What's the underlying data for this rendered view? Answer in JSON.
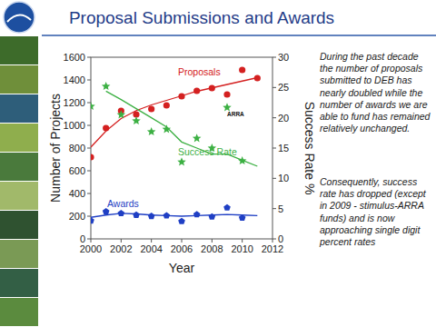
{
  "chart_data": {
    "type": "line",
    "title": "Proposal Submissions and Awards",
    "x_label": "Year",
    "y_label": "Number of Projects",
    "y2_label": "Success Rate %",
    "x": [
      2000,
      2001,
      2002,
      2003,
      2004,
      2005,
      2006,
      2007,
      2008,
      2009,
      2010,
      2011
    ],
    "xlim": [
      2000,
      2012
    ],
    "xticks": [
      2000,
      2002,
      2004,
      2006,
      2008,
      2010,
      2012
    ],
    "ylim": [
      0,
      1600
    ],
    "yticks": [
      0,
      200,
      400,
      600,
      800,
      1000,
      1200,
      1400,
      1600
    ],
    "y2lim": [
      0,
      30
    ],
    "y2ticks": [
      0,
      5,
      10,
      15,
      20,
      25,
      30
    ],
    "grid": false,
    "series": [
      {
        "name": "Proposals",
        "color": "#d42020",
        "marker": "circle",
        "values": [
          720,
          976,
          1128,
          1096,
          1144,
          1176,
          1256,
          1304,
          1328,
          1272,
          1488,
          1416
        ],
        "trend": [
          808,
          950,
          1060,
          1130,
          1180,
          1220,
          1260,
          1300,
          1330,
          1360,
          1390,
          1420
        ]
      },
      {
        "name": "Awards",
        "color": "#1f3fc4",
        "marker": "pentagon",
        "values": [
          160,
          240,
          225,
          210,
          200,
          205,
          155,
          215,
          195,
          275,
          185,
          null
        ],
        "trend": [
          190,
          210,
          225,
          220,
          210,
          205,
          200,
          205,
          210,
          215,
          210,
          205
        ]
      },
      {
        "name": "Success Rate",
        "color": "#3cb043",
        "marker": "star",
        "axis": "y2",
        "values": [
          21.9,
          25.2,
          20.5,
          19.5,
          17.7,
          18.1,
          12.7,
          16.6,
          15,
          21.7,
          12.9,
          null
        ],
        "trend": [
          null,
          24.4,
          23,
          21.5,
          20,
          18.5,
          16,
          15,
          14,
          14,
          13,
          12
        ]
      }
    ],
    "annotations": [
      "ARRA"
    ]
  },
  "side_text": [
    "During the past decade the number of proposals submitted to DEB has nearly doubled while the number of awards we are able to fund has remained relatively unchanged.",
    "Consequently, success rate has dropped (except in 2009 - stimulus-ARRA funds) and is now approaching single digit percent rates"
  ]
}
